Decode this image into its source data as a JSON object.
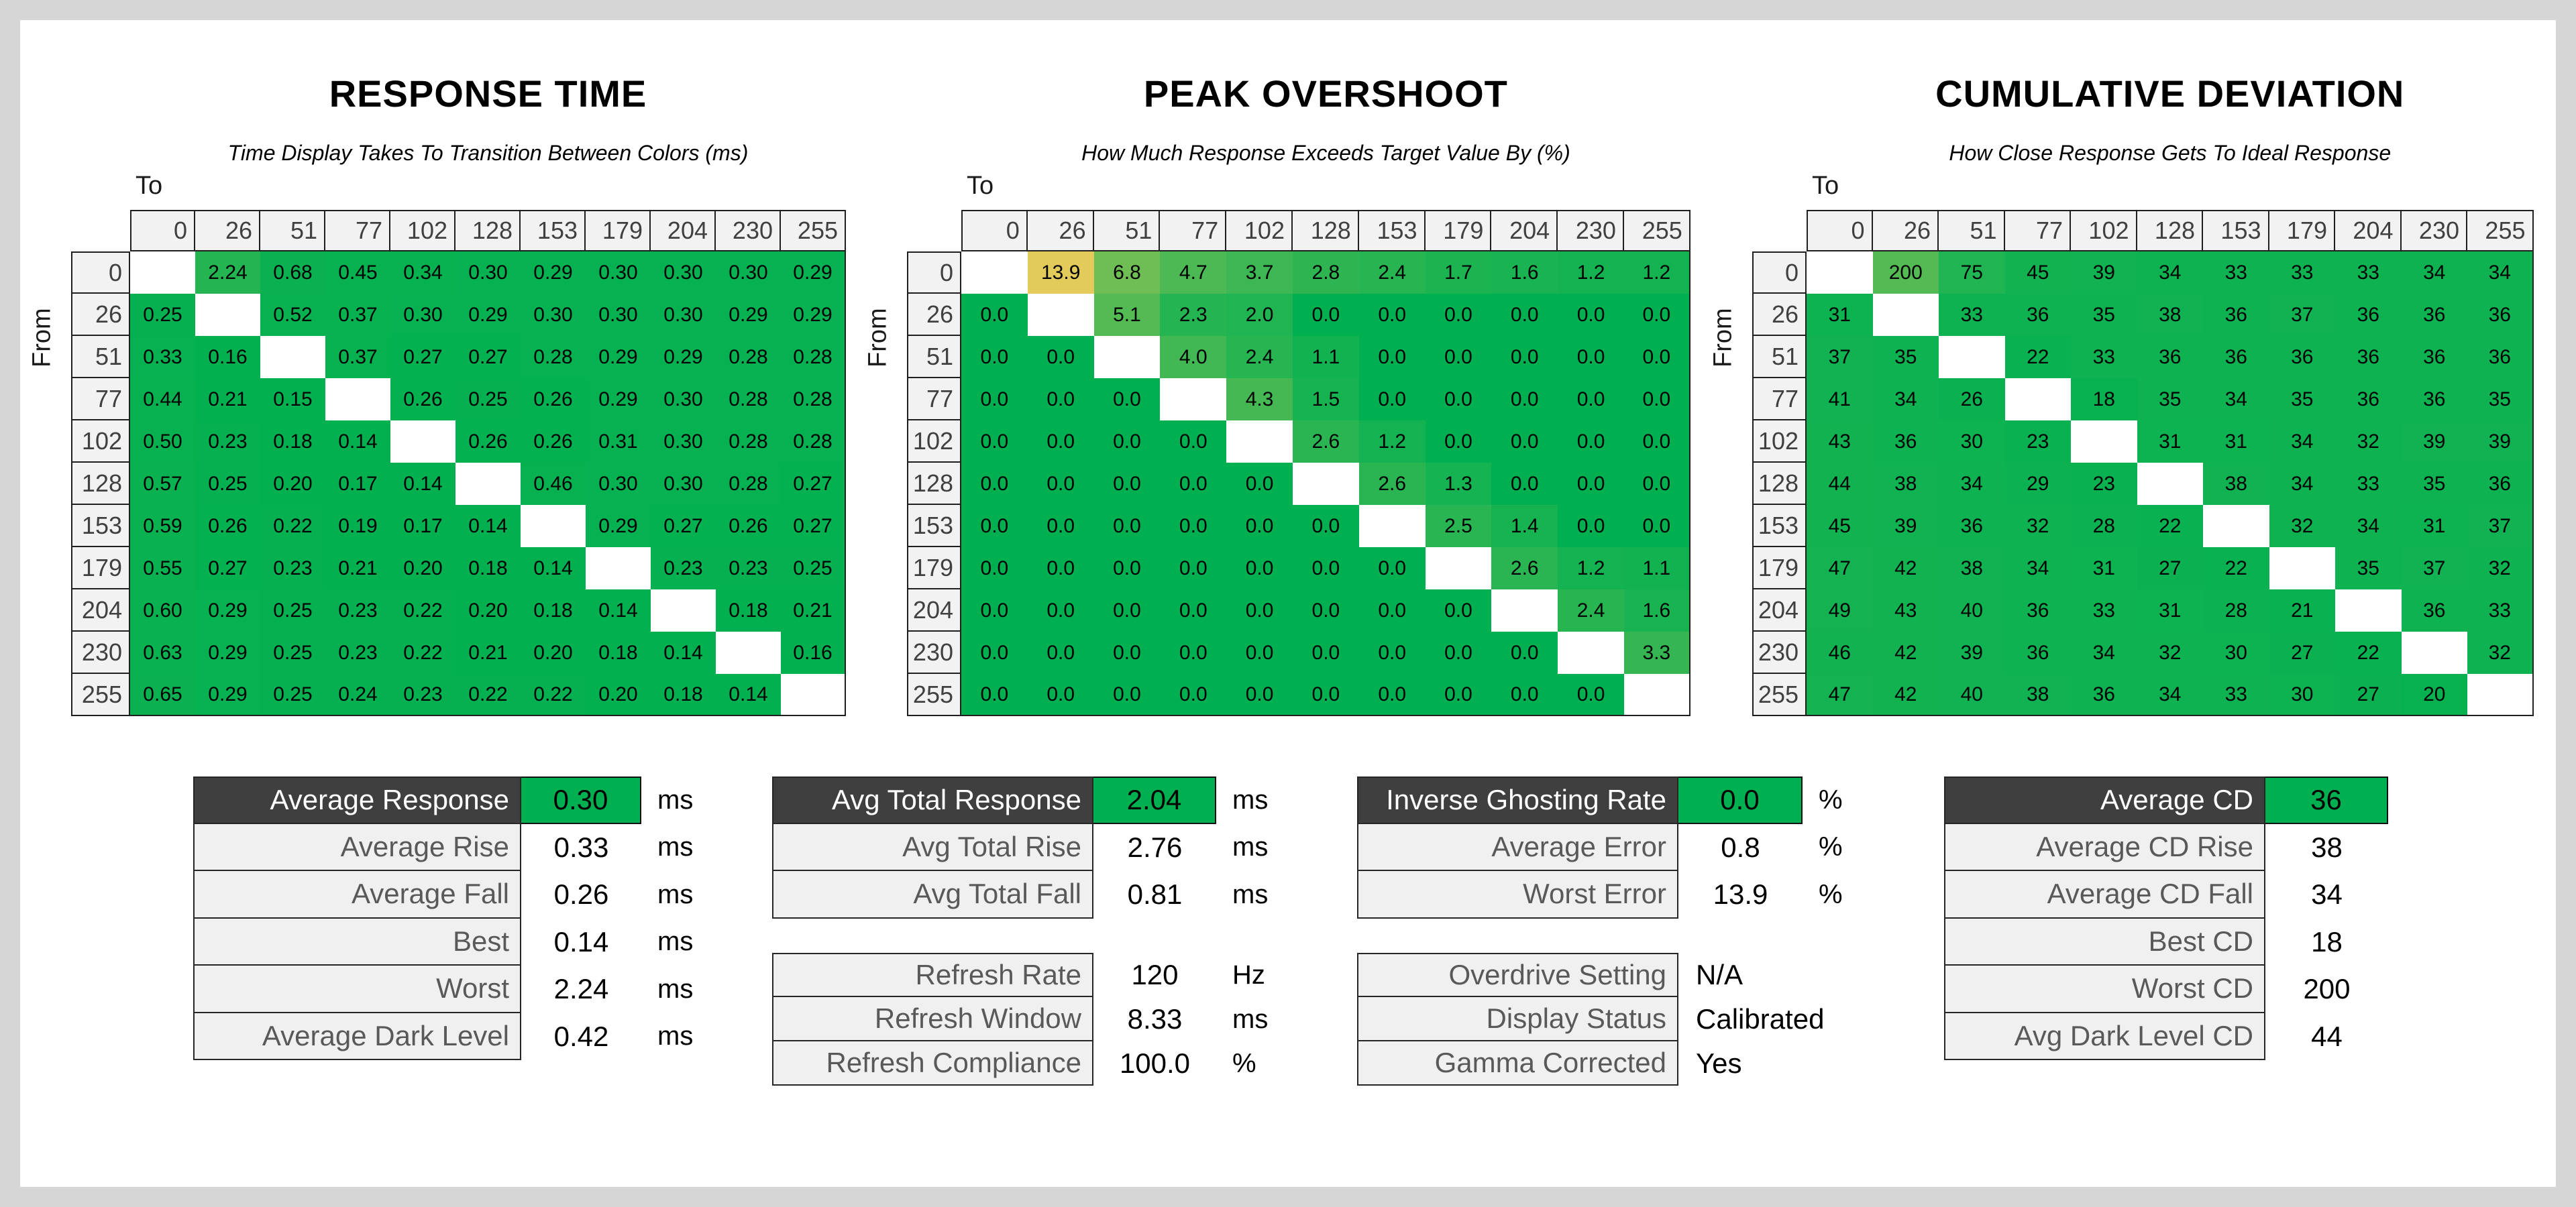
{
  "page": {
    "background": "#D6D6D6",
    "panel": "#FFFFFF"
  },
  "colors": {
    "green": "#00B050",
    "yellow": "#E2CB5B",
    "matrix_header_bg": "#F2F2F2",
    "matrix_header_text": "#404040",
    "grid_border": "#1F1F1F",
    "summary_dark_bg": "#3F3F3F",
    "summary_light_bg": "#F0F0F0",
    "summary_light_text": "#595959"
  },
  "axis": {
    "to_label": "To",
    "from_label": "From"
  },
  "levels": [
    "0",
    "26",
    "51",
    "77",
    "102",
    "128",
    "153",
    "179",
    "204",
    "230",
    "255"
  ],
  "chart_data": [
    {
      "type": "heatmap",
      "title": "RESPONSE TIME",
      "subtitle": "Time Display Takes To Transition Between Colors (ms)",
      "x_axis": "To",
      "y_axis": "From",
      "categories": [
        0,
        26,
        51,
        77,
        102,
        128,
        153,
        179,
        204,
        230,
        255
      ],
      "color_max": 13.9,
      "values": [
        [
          null,
          "2.24",
          "0.68",
          "0.45",
          "0.34",
          "0.30",
          "0.29",
          "0.30",
          "0.30",
          "0.30",
          "0.29"
        ],
        [
          "0.25",
          null,
          "0.52",
          "0.37",
          "0.30",
          "0.29",
          "0.30",
          "0.30",
          "0.30",
          "0.29",
          "0.29"
        ],
        [
          "0.33",
          "0.16",
          null,
          "0.37",
          "0.27",
          "0.27",
          "0.28",
          "0.29",
          "0.29",
          "0.28",
          "0.28"
        ],
        [
          "0.44",
          "0.21",
          "0.15",
          null,
          "0.26",
          "0.25",
          "0.26",
          "0.29",
          "0.30",
          "0.28",
          "0.28"
        ],
        [
          "0.50",
          "0.23",
          "0.18",
          "0.14",
          null,
          "0.26",
          "0.26",
          "0.31",
          "0.30",
          "0.28",
          "0.28"
        ],
        [
          "0.57",
          "0.25",
          "0.20",
          "0.17",
          "0.14",
          null,
          "0.46",
          "0.30",
          "0.30",
          "0.28",
          "0.27"
        ],
        [
          "0.59",
          "0.26",
          "0.22",
          "0.19",
          "0.17",
          "0.14",
          null,
          "0.29",
          "0.27",
          "0.26",
          "0.27"
        ],
        [
          "0.55",
          "0.27",
          "0.23",
          "0.21",
          "0.20",
          "0.18",
          "0.14",
          null,
          "0.23",
          "0.23",
          "0.25"
        ],
        [
          "0.60",
          "0.29",
          "0.25",
          "0.23",
          "0.22",
          "0.20",
          "0.18",
          "0.14",
          null,
          "0.18",
          "0.21"
        ],
        [
          "0.63",
          "0.29",
          "0.25",
          "0.23",
          "0.22",
          "0.21",
          "0.20",
          "0.18",
          "0.14",
          null,
          "0.16"
        ],
        [
          "0.65",
          "0.29",
          "0.25",
          "0.24",
          "0.23",
          "0.22",
          "0.22",
          "0.20",
          "0.18",
          "0.14",
          null
        ]
      ]
    },
    {
      "type": "heatmap",
      "title": "PEAK OVERSHOOT",
      "subtitle": "How Much Response Exceeds Target Value By (%)",
      "x_axis": "To",
      "y_axis": "From",
      "categories": [
        0,
        26,
        51,
        77,
        102,
        128,
        153,
        179,
        204,
        230,
        255
      ],
      "color_max": 13.9,
      "values": [
        [
          null,
          "13.9",
          "6.8",
          "4.7",
          "3.7",
          "2.8",
          "2.4",
          "1.7",
          "1.6",
          "1.2",
          "1.2"
        ],
        [
          "0.0",
          null,
          "5.1",
          "2.3",
          "2.0",
          "0.0",
          "0.0",
          "0.0",
          "0.0",
          "0.0",
          "0.0"
        ],
        [
          "0.0",
          "0.0",
          null,
          "4.0",
          "2.4",
          "1.1",
          "0.0",
          "0.0",
          "0.0",
          "0.0",
          "0.0"
        ],
        [
          "0.0",
          "0.0",
          "0.0",
          null,
          "4.3",
          "1.5",
          "0.0",
          "0.0",
          "0.0",
          "0.0",
          "0.0"
        ],
        [
          "0.0",
          "0.0",
          "0.0",
          "0.0",
          null,
          "2.6",
          "1.2",
          "0.0",
          "0.0",
          "0.0",
          "0.0"
        ],
        [
          "0.0",
          "0.0",
          "0.0",
          "0.0",
          "0.0",
          null,
          "2.6",
          "1.3",
          "0.0",
          "0.0",
          "0.0"
        ],
        [
          "0.0",
          "0.0",
          "0.0",
          "0.0",
          "0.0",
          "0.0",
          null,
          "2.5",
          "1.4",
          "0.0",
          "0.0"
        ],
        [
          "0.0",
          "0.0",
          "0.0",
          "0.0",
          "0.0",
          "0.0",
          "0.0",
          null,
          "2.6",
          "1.2",
          "1.1"
        ],
        [
          "0.0",
          "0.0",
          "0.0",
          "0.0",
          "0.0",
          "0.0",
          "0.0",
          "0.0",
          null,
          "2.4",
          "1.6"
        ],
        [
          "0.0",
          "0.0",
          "0.0",
          "0.0",
          "0.0",
          "0.0",
          "0.0",
          "0.0",
          "0.0",
          null,
          "3.3"
        ],
        [
          "0.0",
          "0.0",
          "0.0",
          "0.0",
          "0.0",
          "0.0",
          "0.0",
          "0.0",
          "0.0",
          "0.0",
          null
        ]
      ]
    },
    {
      "type": "heatmap",
      "title": "CUMULATIVE DEVIATION",
      "subtitle": "How Close Response Gets To Ideal Response",
      "x_axis": "To",
      "y_axis": "From",
      "categories": [
        0,
        26,
        51,
        77,
        102,
        128,
        153,
        179,
        204,
        230,
        255
      ],
      "color_max": 535,
      "values": [
        [
          null,
          "200",
          "75",
          "45",
          "39",
          "34",
          "33",
          "33",
          "33",
          "34",
          "34"
        ],
        [
          "31",
          null,
          "33",
          "36",
          "35",
          "38",
          "36",
          "37",
          "36",
          "36",
          "36"
        ],
        [
          "37",
          "35",
          null,
          "22",
          "33",
          "36",
          "36",
          "36",
          "36",
          "36",
          "36"
        ],
        [
          "41",
          "34",
          "26",
          null,
          "18",
          "35",
          "34",
          "35",
          "36",
          "36",
          "35"
        ],
        [
          "43",
          "36",
          "30",
          "23",
          null,
          "31",
          "31",
          "34",
          "32",
          "39",
          "39"
        ],
        [
          "44",
          "38",
          "34",
          "29",
          "23",
          null,
          "38",
          "34",
          "33",
          "35",
          "36"
        ],
        [
          "45",
          "39",
          "36",
          "32",
          "28",
          "22",
          null,
          "32",
          "34",
          "31",
          "37"
        ],
        [
          "47",
          "42",
          "38",
          "34",
          "31",
          "27",
          "22",
          null,
          "35",
          "37",
          "32"
        ],
        [
          "49",
          "43",
          "40",
          "36",
          "33",
          "31",
          "28",
          "21",
          null,
          "36",
          "33"
        ],
        [
          "46",
          "42",
          "39",
          "36",
          "34",
          "32",
          "30",
          "27",
          "22",
          null,
          "32"
        ],
        [
          "47",
          "42",
          "40",
          "38",
          "36",
          "34",
          "33",
          "30",
          "27",
          "20",
          null
        ]
      ]
    },
    {
      "type": "table",
      "id": "response-summary",
      "rows": [
        {
          "label": "Average Response",
          "value": "0.30",
          "unit": "ms",
          "highlight": true
        },
        {
          "label": "Average Rise",
          "value": "0.33",
          "unit": "ms"
        },
        {
          "label": "Average Fall",
          "value": "0.26",
          "unit": "ms"
        },
        {
          "label": "Best",
          "value": "0.14",
          "unit": "ms"
        },
        {
          "label": "Worst",
          "value": "2.24",
          "unit": "ms"
        },
        {
          "label": "Average Dark Level",
          "value": "0.42",
          "unit": "ms"
        }
      ]
    },
    {
      "type": "table",
      "id": "total-response-summary",
      "rows": [
        {
          "label": "Avg Total Response",
          "value": "2.04",
          "unit": "ms",
          "highlight": true
        },
        {
          "label": "Avg Total Rise",
          "value": "2.76",
          "unit": "ms"
        },
        {
          "label": "Avg Total Fall",
          "value": "0.81",
          "unit": "ms"
        }
      ]
    },
    {
      "type": "table",
      "id": "refresh-summary",
      "rows": [
        {
          "label": "Refresh Rate",
          "value": "120",
          "unit": "Hz"
        },
        {
          "label": "Refresh Window",
          "value": "8.33",
          "unit": "ms"
        },
        {
          "label": "Refresh Compliance",
          "value": "100.0",
          "unit": "%"
        }
      ]
    },
    {
      "type": "table",
      "id": "ghosting-summary",
      "rows": [
        {
          "label": "Inverse Ghosting Rate",
          "value": "0.0",
          "unit": "%",
          "highlight": true
        },
        {
          "label": "Average Error",
          "value": "0.8",
          "unit": "%"
        },
        {
          "label": "Worst Error",
          "value": "13.9",
          "unit": "%"
        }
      ]
    },
    {
      "type": "table",
      "id": "display-info",
      "rows": [
        {
          "label": "Overdrive Setting",
          "value": "N/A",
          "text": true
        },
        {
          "label": "Display Status",
          "value": "Calibrated",
          "text": true
        },
        {
          "label": "Gamma Corrected",
          "value": "Yes",
          "text": true
        }
      ]
    },
    {
      "type": "table",
      "id": "cd-summary",
      "rows": [
        {
          "label": "Average CD",
          "value": "36",
          "highlight": true
        },
        {
          "label": "Average CD Rise",
          "value": "38"
        },
        {
          "label": "Average CD Fall",
          "value": "34"
        },
        {
          "label": "Best CD",
          "value": "18"
        },
        {
          "label": "Worst CD",
          "value": "200"
        },
        {
          "label": "Avg Dark Level CD",
          "value": "44"
        }
      ]
    }
  ]
}
